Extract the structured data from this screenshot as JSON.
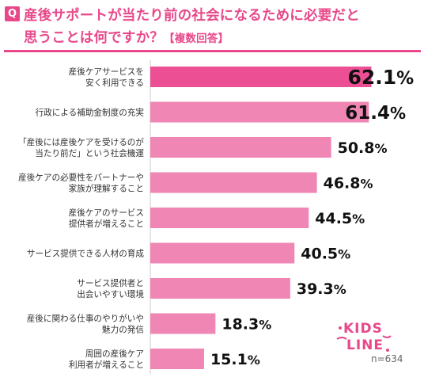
{
  "header": {
    "q": "Q",
    "title_line1": "産後サポートが当たり前の社会になるために必要だと",
    "title_line2": "思うことは何ですか？",
    "title_note": "【複数回答】"
  },
  "footer": {
    "n": "n=634",
    "logo_text": "KIDS LINE"
  },
  "colors": {
    "bar_top": "#ec4f93",
    "bar": "#ef86b3",
    "accent": "#e8488a"
  },
  "chart_data": {
    "type": "bar",
    "orientation": "horizontal",
    "categories": [
      [
        "産後ケアサービスを",
        "安く利用できる"
      ],
      [
        "行政による補助金制度の充実"
      ],
      [
        "「産後には産後ケアを受けるのが",
        "当たり前だ」という社会機運"
      ],
      [
        "産後ケアの必要性をパートナーや",
        "家族が理解すること"
      ],
      [
        "産後ケアのサービス",
        "提供者が増えること"
      ],
      [
        "サービス提供できる人材の育成"
      ],
      [
        "サービス提供者と",
        "出会いやすい環境"
      ],
      [
        "産後に関わる仕事のやりがいや",
        "魅力の発信"
      ],
      [
        "周囲の産後ケア",
        "利用者が増えること"
      ]
    ],
    "values": [
      62.1,
      61.4,
      50.8,
      46.8,
      44.5,
      40.5,
      39.3,
      18.3,
      15.1
    ],
    "labels": [
      "62.1%",
      "61.4%",
      "50.8%",
      "46.8%",
      "44.5%",
      "40.5%",
      "39.3%",
      "18.3%",
      "15.1%"
    ],
    "unit": "%",
    "xlim": [
      0,
      65
    ]
  }
}
